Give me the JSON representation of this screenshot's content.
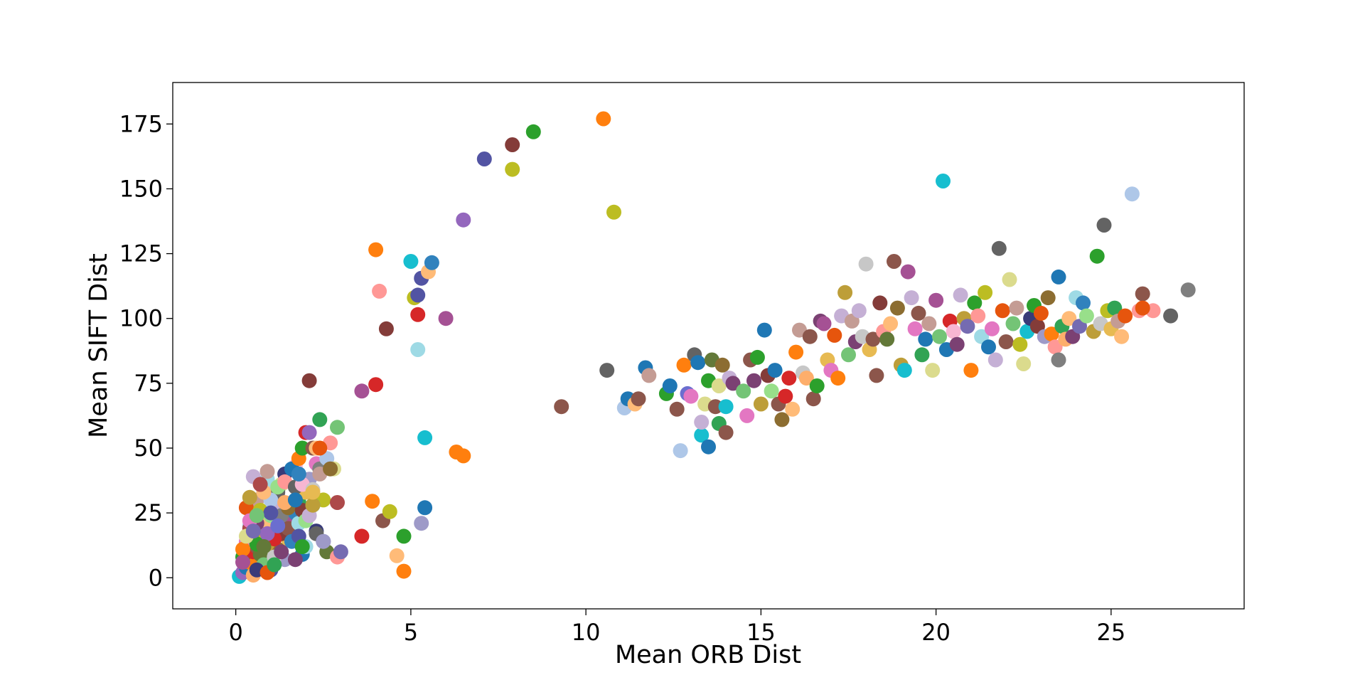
{
  "chart_data": {
    "type": "scatter",
    "title": "",
    "xlabel": "Mean ORB Dist",
    "ylabel": "Mean SIFT Dist",
    "xlim": [
      -1.8,
      28.8
    ],
    "ylim": [
      -12,
      191
    ],
    "xticks": [
      0,
      5,
      10,
      15,
      20,
      25
    ],
    "yticks": [
      0,
      25,
      50,
      75,
      100,
      125,
      150,
      175
    ],
    "grid": false,
    "legend": "none",
    "palette": [
      "#1f77b4",
      "#ff7f0e",
      "#2ca02c",
      "#d62728",
      "#9467bd",
      "#8c564b",
      "#e377c2",
      "#7f7f7f",
      "#bcbd22",
      "#17becf",
      "#aec7e8",
      "#ffbb78",
      "#98df8a",
      "#ff9896",
      "#c5b0d5",
      "#c49c94",
      "#f7b6d2",
      "#c7c7c7",
      "#dbdb8d",
      "#9edae5",
      "#393b79",
      "#5254a3",
      "#6b6ecf",
      "#637939",
      "#8c6d31",
      "#bd9e39",
      "#e7ba52",
      "#843c39",
      "#ad494a",
      "#7b4173",
      "#a55194",
      "#3182bd",
      "#e6550d",
      "#31a354",
      "#756bb1",
      "#636363",
      "#fdae6b",
      "#74c476",
      "#9e9ac8"
    ],
    "points": [
      [
        0.1,
        0.5,
        9
      ],
      [
        0.2,
        2,
        4
      ],
      [
        0.3,
        4,
        0
      ],
      [
        0.4,
        6,
        1
      ],
      [
        0.2,
        8,
        2
      ],
      [
        0.5,
        10,
        3
      ],
      [
        0.6,
        12,
        5
      ],
      [
        0.3,
        14,
        6
      ],
      [
        0.7,
        16,
        7
      ],
      [
        0.8,
        18,
        8
      ],
      [
        0.4,
        20,
        10
      ],
      [
        0.9,
        22,
        11
      ],
      [
        1.0,
        24,
        12
      ],
      [
        0.5,
        26,
        13
      ],
      [
        1.1,
        28,
        14
      ],
      [
        0.6,
        30,
        15
      ],
      [
        1.2,
        32,
        16
      ],
      [
        0.8,
        34,
        17
      ],
      [
        1.3,
        36,
        18
      ],
      [
        0.9,
        38,
        19
      ],
      [
        1.4,
        40,
        20
      ],
      [
        1.0,
        3,
        21
      ],
      [
        1.1,
        6,
        22
      ],
      [
        0.7,
        9,
        23
      ],
      [
        1.2,
        11,
        24
      ],
      [
        0.9,
        13,
        25
      ],
      [
        1.5,
        15,
        26
      ],
      [
        1.3,
        17,
        27
      ],
      [
        0.4,
        19,
        28
      ],
      [
        0.6,
        21,
        29
      ],
      [
        1.6,
        23,
        30
      ],
      [
        1.7,
        25,
        31
      ],
      [
        0.3,
        27,
        32
      ],
      [
        1.8,
        29,
        33
      ],
      [
        1.0,
        31,
        34
      ],
      [
        1.2,
        33,
        35
      ],
      [
        0.5,
        1,
        36
      ],
      [
        0.8,
        5,
        37
      ],
      [
        1.4,
        7,
        38
      ],
      [
        1.9,
        9,
        0
      ],
      [
        0.2,
        11,
        1
      ],
      [
        0.6,
        13,
        2
      ],
      [
        1.1,
        15,
        3
      ],
      [
        0.9,
        17,
        4
      ],
      [
        1.5,
        19,
        5
      ],
      [
        0.4,
        22,
        6
      ],
      [
        1.3,
        24,
        7
      ],
      [
        0.7,
        26,
        8
      ],
      [
        1.6,
        28,
        9
      ],
      [
        1.0,
        30,
        10
      ],
      [
        0.8,
        33,
        11
      ],
      [
        1.2,
        35,
        12
      ],
      [
        1.4,
        37,
        13
      ],
      [
        0.5,
        39,
        14
      ],
      [
        0.9,
        41,
        15
      ],
      [
        1.7,
        43,
        16
      ],
      [
        1.1,
        8,
        17
      ],
      [
        0.3,
        16,
        18
      ],
      [
        1.8,
        21,
        19
      ],
      [
        0.6,
        3,
        20
      ],
      [
        1.0,
        25,
        21
      ],
      [
        1.2,
        20,
        22
      ],
      [
        0.8,
        12,
        23
      ],
      [
        1.5,
        27,
        24
      ],
      [
        0.4,
        31,
        25
      ],
      [
        2.0,
        33,
        26
      ],
      [
        1.9,
        26,
        27
      ],
      [
        0.7,
        36,
        28
      ],
      [
        1.3,
        10,
        29
      ],
      [
        0.2,
        6,
        30
      ],
      [
        1.6,
        14,
        31
      ],
      [
        0.9,
        2,
        32
      ],
      [
        1.1,
        5,
        33
      ],
      [
        0.5,
        18,
        34
      ],
      [
        1.7,
        35,
        35
      ],
      [
        1.4,
        29,
        36
      ],
      [
        0.6,
        24,
        37
      ],
      [
        2.1,
        38,
        38
      ],
      [
        1.6,
        42,
        0
      ],
      [
        1.8,
        46,
        1
      ],
      [
        1.9,
        50,
        2
      ],
      [
        2.0,
        56,
        3
      ],
      [
        2.1,
        56,
        4
      ],
      [
        2.2,
        50,
        5
      ],
      [
        2.3,
        44,
        6
      ],
      [
        2.4,
        42,
        7
      ],
      [
        2.5,
        30,
        8
      ],
      [
        2.2,
        28,
        9
      ],
      [
        2.6,
        46,
        10
      ],
      [
        2.3,
        50,
        11
      ],
      [
        2.0,
        22,
        12
      ],
      [
        2.7,
        52,
        13
      ],
      [
        2.1,
        24,
        14
      ],
      [
        2.4,
        40,
        15
      ],
      [
        1.9,
        36,
        16
      ],
      [
        2.2,
        34,
        17
      ],
      [
        2.8,
        42,
        18
      ],
      [
        2.0,
        12,
        19
      ],
      [
        2.3,
        18,
        20
      ],
      [
        1.8,
        16,
        21
      ],
      [
        2.5,
        14,
        22
      ],
      [
        2.6,
        10,
        23
      ],
      [
        2.1,
        76,
        27
      ],
      [
        2.4,
        61,
        33
      ],
      [
        2.9,
        58,
        37
      ],
      [
        2.4,
        50,
        32
      ],
      [
        2.7,
        42,
        24
      ],
      [
        2.2,
        28,
        25
      ],
      [
        2.9,
        29,
        28
      ],
      [
        2.3,
        17,
        35
      ],
      [
        2.5,
        14,
        38
      ],
      [
        1.7,
        7,
        29
      ],
      [
        2.9,
        8,
        13
      ],
      [
        3.0,
        10,
        34
      ],
      [
        1.9,
        12,
        2
      ],
      [
        2.2,
        33,
        26
      ],
      [
        1.8,
        40,
        31
      ],
      [
        1.7,
        30,
        0
      ],
      [
        3.6,
        72,
        30
      ],
      [
        4.0,
        74.5,
        3
      ],
      [
        4.3,
        96,
        27
      ],
      [
        3.6,
        16,
        3
      ],
      [
        3.9,
        29.5,
        1
      ],
      [
        4.2,
        22,
        5
      ],
      [
        4.4,
        25.5,
        8
      ],
      [
        4.6,
        8.5,
        11
      ],
      [
        4.8,
        16,
        2
      ],
      [
        4.8,
        2.5,
        1
      ],
      [
        4.0,
        126.5,
        1
      ],
      [
        4.1,
        110.5,
        13
      ],
      [
        5.0,
        122,
        9
      ],
      [
        5.1,
        108,
        8
      ],
      [
        5.2,
        101.5,
        3
      ],
      [
        5.2,
        109,
        21
      ],
      [
        5.3,
        115.5,
        21
      ],
      [
        5.5,
        118,
        11
      ],
      [
        5.6,
        121.5,
        31
      ],
      [
        5.2,
        88,
        19
      ],
      [
        5.4,
        54,
        9
      ],
      [
        5.4,
        27,
        0
      ],
      [
        5.3,
        21,
        38
      ],
      [
        6.0,
        100,
        30
      ],
      [
        6.3,
        48.5,
        1
      ],
      [
        6.5,
        47,
        1
      ],
      [
        6.5,
        138,
        4
      ],
      [
        7.1,
        161.5,
        21
      ],
      [
        7.9,
        167,
        27
      ],
      [
        8.5,
        172,
        2
      ],
      [
        7.9,
        157.5,
        8
      ],
      [
        10.5,
        177,
        1
      ],
      [
        10.8,
        141,
        8
      ],
      [
        9.3,
        66,
        5
      ],
      [
        10.6,
        80,
        35
      ],
      [
        11.1,
        65.5,
        10
      ],
      [
        11.2,
        69,
        0
      ],
      [
        11.4,
        67,
        11
      ],
      [
        11.5,
        69,
        5
      ],
      [
        11.7,
        81,
        0
      ],
      [
        11.8,
        78,
        15
      ],
      [
        12.3,
        71,
        2
      ],
      [
        12.4,
        74,
        0
      ],
      [
        12.6,
        65,
        5
      ],
      [
        12.7,
        49,
        10
      ],
      [
        12.8,
        82,
        1
      ],
      [
        12.9,
        71,
        22
      ],
      [
        13.0,
        70,
        6
      ],
      [
        13.1,
        86,
        35
      ],
      [
        13.2,
        83,
        0
      ],
      [
        13.3,
        55,
        9
      ],
      [
        13.3,
        60,
        14
      ],
      [
        13.5,
        76,
        2
      ],
      [
        13.4,
        67,
        18
      ],
      [
        13.5,
        50.5,
        0
      ],
      [
        13.6,
        84,
        23
      ],
      [
        13.7,
        66,
        5
      ],
      [
        13.8,
        74,
        18
      ],
      [
        13.9,
        82,
        24
      ],
      [
        13.8,
        59.5,
        33
      ],
      [
        14.0,
        56,
        5
      ],
      [
        14.0,
        66,
        9
      ],
      [
        14.1,
        77,
        14
      ],
      [
        14.2,
        75,
        29
      ],
      [
        14.5,
        72,
        37
      ],
      [
        14.6,
        62.5,
        6
      ],
      [
        14.7,
        84,
        5
      ],
      [
        14.8,
        76,
        29
      ],
      [
        14.9,
        85,
        2
      ],
      [
        15.0,
        67,
        25
      ],
      [
        15.1,
        95.5,
        0
      ],
      [
        15.2,
        78,
        27
      ],
      [
        15.3,
        72,
        12
      ],
      [
        15.4,
        80,
        0
      ],
      [
        15.5,
        67,
        5
      ],
      [
        15.6,
        61,
        24
      ],
      [
        15.7,
        70,
        3
      ],
      [
        15.8,
        77,
        3
      ],
      [
        15.9,
        65,
        11
      ],
      [
        16.0,
        87,
        1
      ],
      [
        16.1,
        95.5,
        15
      ],
      [
        16.2,
        79,
        17
      ],
      [
        16.3,
        77,
        36
      ],
      [
        16.4,
        93,
        5
      ],
      [
        16.5,
        69,
        5
      ],
      [
        16.6,
        74,
        2
      ],
      [
        16.7,
        99,
        29
      ],
      [
        16.8,
        98,
        30
      ],
      [
        16.9,
        84,
        26
      ],
      [
        17.0,
        80,
        6
      ],
      [
        17.1,
        93.5,
        32
      ],
      [
        17.2,
        77,
        1
      ],
      [
        17.3,
        101,
        14
      ],
      [
        17.4,
        110,
        25
      ],
      [
        17.5,
        86,
        37
      ],
      [
        17.6,
        99,
        15
      ],
      [
        17.7,
        91,
        29
      ],
      [
        17.8,
        103,
        14
      ],
      [
        17.9,
        93,
        17
      ],
      [
        18.0,
        121,
        17
      ],
      [
        18.1,
        88,
        26
      ],
      [
        18.2,
        92,
        5
      ],
      [
        18.3,
        78,
        5
      ],
      [
        18.4,
        106,
        27
      ],
      [
        18.5,
        95,
        13
      ],
      [
        18.6,
        92,
        23
      ],
      [
        18.7,
        98,
        11
      ],
      [
        18.8,
        122,
        5
      ],
      [
        18.9,
        104,
        24
      ],
      [
        19.0,
        82,
        25
      ],
      [
        19.1,
        80,
        9
      ],
      [
        19.2,
        118,
        30
      ],
      [
        19.3,
        108,
        14
      ],
      [
        19.4,
        96,
        6
      ],
      [
        19.5,
        102,
        5
      ],
      [
        19.6,
        86,
        33
      ],
      [
        19.7,
        92,
        0
      ],
      [
        19.8,
        98,
        15
      ],
      [
        19.9,
        80,
        18
      ],
      [
        20.0,
        107,
        30
      ],
      [
        20.1,
        93,
        37
      ],
      [
        20.2,
        153,
        9
      ],
      [
        20.3,
        88,
        0
      ],
      [
        20.4,
        99,
        3
      ],
      [
        20.5,
        95,
        16
      ],
      [
        20.6,
        90,
        29
      ],
      [
        20.7,
        109,
        14
      ],
      [
        20.8,
        100,
        25
      ],
      [
        20.9,
        97,
        34
      ],
      [
        21.0,
        80,
        1
      ],
      [
        21.1,
        106,
        2
      ],
      [
        21.2,
        101,
        13
      ],
      [
        21.3,
        93,
        19
      ],
      [
        21.4,
        110,
        8
      ],
      [
        21.5,
        89,
        0
      ],
      [
        21.6,
        96,
        6
      ],
      [
        21.7,
        84,
        14
      ],
      [
        21.8,
        127,
        35
      ],
      [
        21.9,
        103,
        32
      ],
      [
        22.0,
        91,
        5
      ],
      [
        22.1,
        115,
        18
      ],
      [
        22.2,
        98,
        37
      ],
      [
        22.3,
        104,
        15
      ],
      [
        22.4,
        90,
        8
      ],
      [
        22.5,
        82.5,
        18
      ],
      [
        22.6,
        95,
        9
      ],
      [
        22.7,
        100,
        20
      ],
      [
        22.8,
        105,
        2
      ],
      [
        22.9,
        97,
        27
      ],
      [
        23.0,
        102,
        32
      ],
      [
        23.1,
        93,
        38
      ],
      [
        23.2,
        108,
        24
      ],
      [
        23.3,
        94,
        1
      ],
      [
        23.4,
        89,
        13
      ],
      [
        23.5,
        116,
        0
      ],
      [
        23.5,
        84,
        7
      ],
      [
        23.6,
        97,
        33
      ],
      [
        23.7,
        92,
        36
      ],
      [
        23.8,
        100,
        11
      ],
      [
        23.9,
        93,
        29
      ],
      [
        24.0,
        108,
        19
      ],
      [
        24.1,
        97,
        34
      ],
      [
        24.2,
        106,
        31
      ],
      [
        24.3,
        101,
        12
      ],
      [
        24.5,
        95,
        25
      ],
      [
        24.6,
        124,
        2
      ],
      [
        24.7,
        98,
        17
      ],
      [
        24.8,
        136,
        35
      ],
      [
        24.9,
        103,
        8
      ],
      [
        25.0,
        96,
        26
      ],
      [
        25.1,
        104,
        33
      ],
      [
        25.2,
        99,
        15
      ],
      [
        25.3,
        93,
        11
      ],
      [
        25.4,
        101,
        32
      ],
      [
        25.6,
        148,
        10
      ],
      [
        25.8,
        103,
        13
      ],
      [
        25.9,
        109.5,
        5
      ],
      [
        26.2,
        103,
        13
      ],
      [
        26.7,
        101,
        35
      ],
      [
        27.2,
        111,
        7
      ],
      [
        25.9,
        104,
        32
      ]
    ]
  }
}
